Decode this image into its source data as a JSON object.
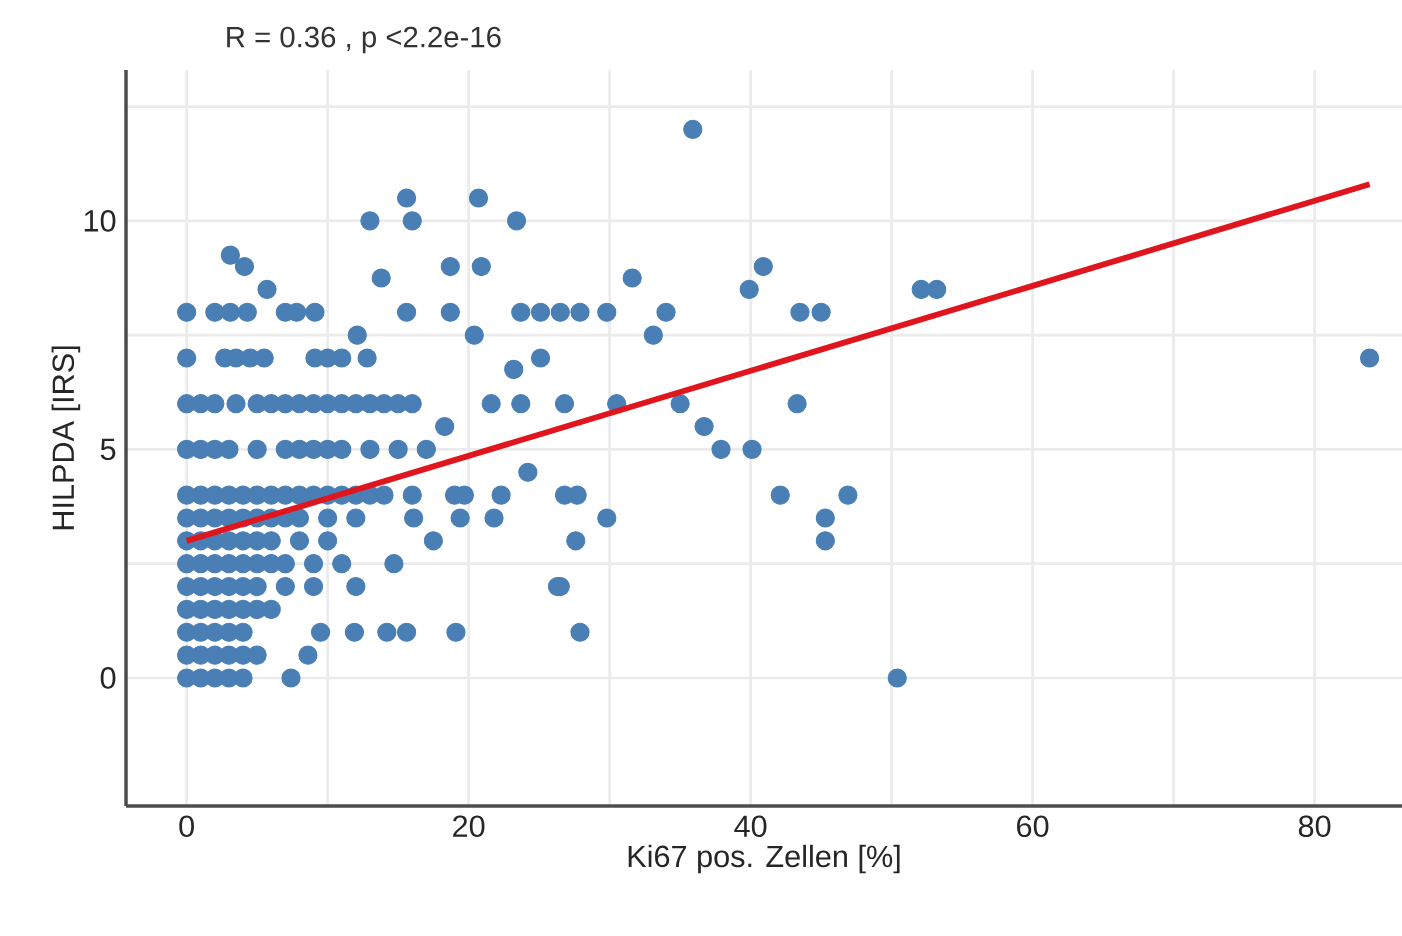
{
  "chart_data": {
    "type": "scatter",
    "xlabel": "Ki67 pos. Zellen [%]",
    "ylabel": "HILPDA [IRS]",
    "annotations": [
      "R = 0.36 , p <2.2e-16"
    ],
    "xlim": [
      -4.3,
      86.2
    ],
    "ylim": [
      -2.8,
      13.3
    ],
    "xticks": [
      0,
      {
        "value": 10,
        "label": null
      },
      20,
      {
        "value": 30,
        "label": null
      },
      40,
      {
        "value": 50,
        "label": null
      },
      60,
      {
        "value": 70,
        "label": null
      },
      80
    ],
    "yticks": [
      0,
      {
        "value": 2.5,
        "label": null
      },
      5,
      {
        "value": 7.5,
        "label": null
      },
      10,
      {
        "value": 12.5,
        "label": null
      }
    ],
    "grid": true,
    "series": [
      {
        "marker": "circle",
        "color": "#4a7fb5",
        "x": [
          15.6,
          16.0,
          13.0,
          20.7,
          23.4,
          3.1,
          4.1,
          5.7,
          13.8,
          18.7,
          20.9,
          0,
          2,
          3.1,
          4.3,
          7,
          7.8,
          9.1,
          15.6,
          18.7,
          23.7,
          25.1,
          26.5,
          27.9,
          29.8,
          34.0,
          43.5,
          45.0,
          52.1,
          53.2,
          20.4,
          12.1,
          0,
          2.7,
          3.5,
          4.5,
          5.5,
          9.1,
          10,
          11,
          12.8,
          25.1,
          23.2,
          0,
          1,
          2,
          3.5,
          5,
          6,
          7,
          8,
          9,
          10,
          11,
          12,
          13,
          14,
          15,
          16,
          21.6,
          23.7,
          26.8,
          30.5,
          35.0,
          43.3,
          36.7,
          37.9,
          40.1,
          31.6,
          39.9,
          40.9,
          33.1,
          35.9,
          83.9,
          50.4,
          42.1,
          45.3,
          45.3,
          46.9,
          27.7,
          26.8,
          29.8,
          27.6,
          26.5,
          27.9,
          18.3,
          0,
          1,
          2,
          3,
          5,
          7,
          8,
          9,
          10,
          11,
          13,
          15,
          17,
          24.2,
          0,
          1,
          2,
          3,
          4,
          5,
          6,
          7,
          8,
          9,
          10,
          11,
          12,
          13,
          14,
          16,
          19,
          19.7,
          22.3,
          16.1,
          17.5,
          19.4,
          21.8,
          0,
          1,
          2,
          3,
          4,
          5,
          6,
          7,
          8,
          10,
          12,
          0,
          1,
          2,
          3,
          4,
          5,
          6,
          8,
          10,
          14.7,
          0,
          1,
          2,
          3,
          4,
          5,
          6,
          7,
          9,
          11,
          0,
          1,
          2,
          3,
          4,
          5,
          7,
          9,
          12,
          26.3,
          0,
          1,
          2,
          3,
          4,
          5,
          6,
          0,
          1,
          2,
          3,
          4,
          9.5,
          11.9,
          14.2,
          15.6,
          19.1,
          0,
          1,
          2,
          3,
          4,
          5,
          8.6,
          0,
          1,
          2,
          3,
          4,
          7.4
        ],
        "values": [
          10.5,
          10.0,
          10.0,
          10.5,
          10.0,
          9.25,
          9.0,
          8.5,
          8.75,
          9.0,
          9.0,
          8,
          8,
          8,
          8,
          8,
          8,
          8,
          8,
          8,
          8,
          8,
          8,
          8,
          8,
          8,
          8,
          8,
          8.5,
          8.5,
          7.5,
          7.5,
          7,
          7,
          7,
          7,
          7,
          7,
          7,
          7,
          7,
          7,
          6.75,
          6,
          6,
          6,
          6,
          6,
          6,
          6,
          6,
          6,
          6,
          6,
          6,
          6,
          6,
          6,
          6,
          6,
          6,
          6,
          6,
          6,
          6,
          5.5,
          5.0,
          5.0,
          8.75,
          8.5,
          9.0,
          7.5,
          12.0,
          7.0,
          0,
          4.0,
          3.5,
          3.0,
          4.0,
          4,
          4,
          3.5,
          3.0,
          2.0,
          1.0,
          5.5,
          5,
          5,
          5,
          5,
          5,
          5,
          5,
          5,
          5,
          5,
          5,
          5,
          5,
          4.5,
          4,
          4,
          4,
          4,
          4,
          4,
          4,
          4,
          4,
          4,
          4,
          4,
          4,
          4,
          4,
          4,
          4,
          4,
          4,
          3.5,
          3.0,
          3.5,
          3.5,
          3.5,
          3.5,
          3.5,
          3.5,
          3.5,
          3.5,
          3.5,
          3.5,
          3.5,
          3.5,
          3.5,
          3,
          3,
          3,
          3,
          3,
          3,
          3,
          3,
          3,
          2.5,
          2.5,
          2.5,
          2.5,
          2.5,
          2.5,
          2.5,
          2.5,
          2.5,
          2.5,
          2.5,
          2,
          2,
          2,
          2,
          2,
          2,
          2,
          2,
          2,
          2.0,
          1.5,
          1.5,
          1.5,
          1.5,
          1.5,
          1.5,
          1.5,
          1,
          1,
          1,
          1,
          1,
          1,
          1,
          1,
          1,
          1,
          0.5,
          0.5,
          0.5,
          0.5,
          0.5,
          0.5,
          0.5,
          0,
          0,
          0,
          0,
          0,
          0
        ]
      },
      {
        "type": "line",
        "marker": "none",
        "color": "#e0161e",
        "x": [
          0,
          83.9
        ],
        "values": [
          3.0,
          10.8
        ]
      }
    ]
  }
}
